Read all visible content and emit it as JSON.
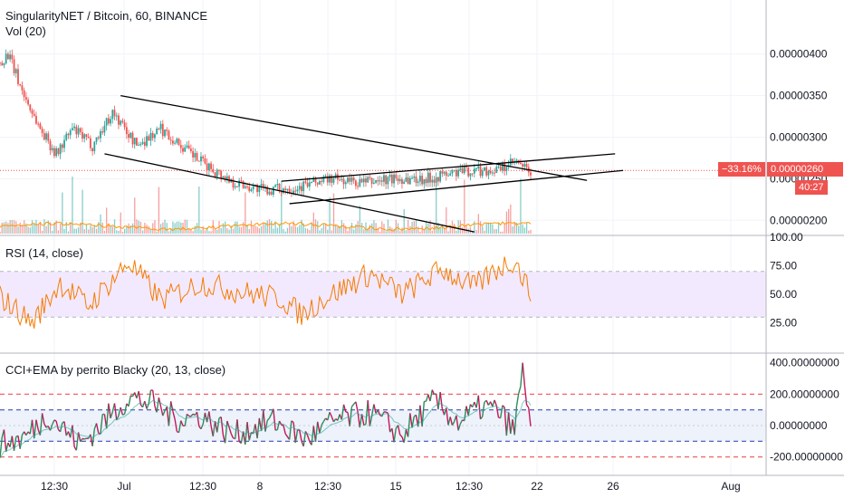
{
  "header": {
    "symbol_line": "SingularityNET / Bitcoin, 60, BINANCE",
    "vol_label": "Vol (20)"
  },
  "colors": {
    "up": "#26a69a",
    "down": "#ef5350",
    "rsi_line": "#f57c00",
    "rsi_band": "#f3e9ff",
    "cci_up": "#2e8b57",
    "cci_down": "#c2185b",
    "ema": "#26a69a",
    "grid": "#f0f3fa",
    "volume_ma": "#ff9800"
  },
  "price_tag": {
    "change": "−33.16%",
    "price": "0.00000260",
    "countdown": "40:27"
  },
  "x_axis": {
    "ticks": [
      "12:30",
      "Jul",
      "12:30",
      "8",
      "12:30",
      "15",
      "12:30",
      "22",
      "26",
      "Aug"
    ]
  },
  "chart_data": [
    {
      "type": "candlestick",
      "title": "SingularityNET / Bitcoin, 60, BINANCE",
      "y_ticks": [
        "0.00000400",
        "0.00000350",
        "0.00000300",
        "0.00000250",
        "0.00000200"
      ],
      "ylim": [
        1.84e-06,
        4.65e-06
      ],
      "last_price": 2.6e-06,
      "path_points": [
        [
          0,
          3.9e-06
        ],
        [
          2,
          4e-06
        ],
        [
          6,
          3.5e-06
        ],
        [
          10,
          3.1e-06
        ],
        [
          14,
          2.8e-06
        ],
        [
          18,
          3.1e-06
        ],
        [
          23,
          2.9e-06
        ],
        [
          28,
          3.3e-06
        ],
        [
          34,
          2.9e-06
        ],
        [
          40,
          3.1e-06
        ],
        [
          50,
          2.7e-06
        ],
        [
          58,
          2.46e-06
        ],
        [
          66,
          2.36e-06
        ],
        [
          74,
          2.4e-06
        ],
        [
          82,
          2.5e-06
        ],
        [
          90,
          2.45e-06
        ],
        [
          98,
          2.5e-06
        ],
        [
          106,
          2.5e-06
        ],
        [
          114,
          2.58e-06
        ],
        [
          118,
          2.6e-06
        ],
        [
          124,
          2.6e-06
        ],
        [
          128,
          2.7e-06
        ],
        [
          132,
          2.57e-06
        ]
      ],
      "trendlines": [
        {
          "from": [
            30,
            3.5e-06
          ],
          "to": [
            146,
            2.48e-06
          ]
        },
        {
          "from": [
            26,
            2.8e-06
          ],
          "to": [
            118,
            1.86e-06
          ]
        },
        {
          "from": [
            70,
            2.47e-06
          ],
          "to": [
            153,
            2.8e-06
          ]
        },
        {
          "from": [
            72,
            2.2e-06
          ],
          "to": [
            155,
            2.6e-06
          ]
        }
      ]
    },
    {
      "type": "line",
      "title": "RSI (14, close)",
      "y_ticks": [
        "100.00",
        "75.00",
        "50.00",
        "25.00"
      ],
      "ylim": [
        0,
        100
      ],
      "band": [
        30,
        70
      ],
      "path_points": [
        [
          0,
          48
        ],
        [
          8,
          25
        ],
        [
          15,
          60
        ],
        [
          22,
          40
        ],
        [
          32,
          78
        ],
        [
          40,
          45
        ],
        [
          50,
          60
        ],
        [
          60,
          52
        ],
        [
          70,
          46
        ],
        [
          75,
          32
        ],
        [
          80,
          45
        ],
        [
          92,
          68
        ],
        [
          100,
          50
        ],
        [
          110,
          72
        ],
        [
          118,
          56
        ],
        [
          124,
          73
        ],
        [
          128,
          80
        ],
        [
          132,
          50
        ]
      ]
    },
    {
      "type": "line",
      "title": "CCI+EMA by perrito Blacky (20, 13, close)",
      "y_ticks": [
        "400.00000000",
        "200.00000000",
        "0.00000000",
        "-200.00000000"
      ],
      "ylim": [
        -300,
        450
      ],
      "levels": [
        200,
        100,
        -100,
        -200
      ],
      "path_points": [
        [
          0,
          -120
        ],
        [
          6,
          -80
        ],
        [
          12,
          70
        ],
        [
          20,
          -120
        ],
        [
          28,
          80
        ],
        [
          32,
          180
        ],
        [
          38,
          140
        ],
        [
          44,
          40
        ],
        [
          50,
          60
        ],
        [
          58,
          -60
        ],
        [
          68,
          30
        ],
        [
          76,
          -90
        ],
        [
          84,
          40
        ],
        [
          92,
          80
        ],
        [
          100,
          -60
        ],
        [
          108,
          160
        ],
        [
          114,
          20
        ],
        [
          120,
          120
        ],
        [
          124,
          90
        ],
        [
          128,
          -40
        ],
        [
          130,
          380
        ],
        [
          132,
          10
        ]
      ]
    }
  ]
}
